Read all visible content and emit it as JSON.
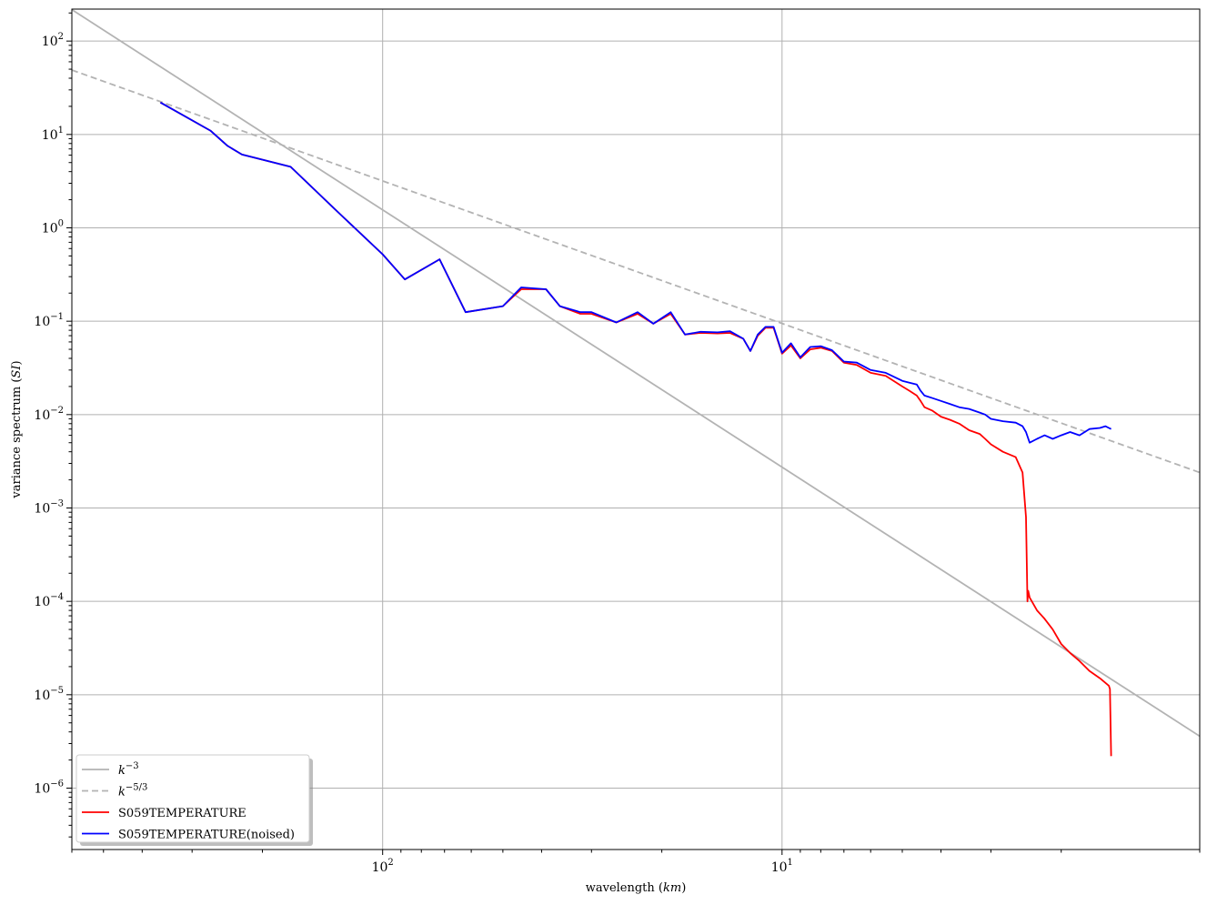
{
  "chart_data": {
    "type": "line",
    "xlabel_text": "wavelength (",
    "xlabel_unit": "km",
    "xlabel_close": ")",
    "ylabel_text": "variance spectrum (",
    "ylabel_unit": "SI",
    "ylabel_close": ")",
    "x_scale": "log",
    "y_scale": "log",
    "x_reversed": true,
    "xlim": [
      600,
      0.9
    ],
    "ylim": [
      2.2e-07,
      220
    ],
    "grid": true,
    "legend_position": "lower-left",
    "x_ticks": [
      {
        "value": 100,
        "base": "10",
        "exp": "2"
      },
      {
        "value": 10,
        "base": "10",
        "exp": "1"
      }
    ],
    "y_ticks": [
      {
        "value": 100,
        "base": "10",
        "exp": "2"
      },
      {
        "value": 10,
        "base": "10",
        "exp": "1"
      },
      {
        "value": 1,
        "base": "10",
        "exp": "0"
      },
      {
        "value": 0.1,
        "base": "10",
        "exp": "−1"
      },
      {
        "value": 0.01,
        "base": "10",
        "exp": "−2"
      },
      {
        "value": 0.001,
        "base": "10",
        "exp": "−3"
      },
      {
        "value": 0.0001,
        "base": "10",
        "exp": "−4"
      },
      {
        "value": 1e-05,
        "base": "10",
        "exp": "−5"
      },
      {
        "value": 1e-06,
        "base": "10",
        "exp": "−6"
      }
    ],
    "series": [
      {
        "name_base": "k",
        "name_exp": "−3",
        "color": "#b3b3b3",
        "dash": "",
        "x": [
          600,
          0.9
        ],
        "y": [
          217,
          3.6e-06
        ]
      },
      {
        "name_base": "k",
        "name_exp": "−5/3",
        "color": "#b3b3b3",
        "dash": "7,4",
        "x": [
          600,
          0.9
        ],
        "y": [
          49,
          0.0024
        ]
      },
      {
        "name": "S059TEMPERATURE",
        "color": "#ff0000",
        "dash": "",
        "x": [
          360,
          270,
          245,
          225,
          170,
          130,
          100,
          88,
          72,
          62,
          50,
          45,
          39,
          36,
          32,
          30,
          26,
          23,
          21,
          19,
          17.5,
          16,
          14.5,
          13.5,
          12.5,
          12,
          11.5,
          11,
          10.5,
          10,
          9.5,
          9,
          8.5,
          8,
          7.5,
          7,
          6.5,
          6,
          5.5,
          5,
          4.8,
          4.6,
          4.5,
          4.4,
          4.2,
          4,
          3.8,
          3.6,
          3.4,
          3.2,
          3.1,
          3.0,
          2.8,
          2.6,
          2.5,
          2.45,
          2.43,
          2.42,
          2.4,
          2.3,
          2.2,
          2.1,
          2.0,
          1.9,
          1.8,
          1.7,
          1.6,
          1.52,
          1.51,
          1.5
        ],
        "y": [
          22,
          11,
          7.6,
          6.1,
          4.5,
          1.5,
          0.52,
          0.28,
          0.46,
          0.125,
          0.145,
          0.22,
          0.22,
          0.145,
          0.12,
          0.12,
          0.097,
          0.12,
          0.094,
          0.12,
          0.072,
          0.075,
          0.074,
          0.075,
          0.065,
          0.048,
          0.07,
          0.085,
          0.085,
          0.045,
          0.055,
          0.04,
          0.05,
          0.052,
          0.048,
          0.036,
          0.034,
          0.028,
          0.026,
          0.02,
          0.018,
          0.016,
          0.014,
          0.012,
          0.011,
          0.0095,
          0.0088,
          0.008,
          0.0068,
          0.0062,
          0.0055,
          0.0048,
          0.004,
          0.0035,
          0.0024,
          0.0008,
          0.0001,
          0.00013,
          0.00011,
          8e-05,
          6.5e-05,
          5e-05,
          3.5e-05,
          2.8e-05,
          2.3e-05,
          1.8e-05,
          1.5e-05,
          1.25e-05,
          1.15e-05,
          2.2e-06
        ]
      },
      {
        "name": "S059TEMPERATURE(noised)",
        "color": "#0000ff",
        "dash": "",
        "x": [
          360,
          270,
          245,
          225,
          170,
          130,
          100,
          88,
          72,
          62,
          50,
          45,
          39,
          36,
          32,
          30,
          26,
          23,
          21,
          19,
          17.5,
          16,
          14.5,
          13.5,
          12.5,
          12,
          11.5,
          11,
          10.5,
          10,
          9.5,
          9,
          8.5,
          8,
          7.5,
          7,
          6.5,
          6,
          5.5,
          5,
          4.8,
          4.6,
          4.5,
          4.4,
          4.2,
          4,
          3.8,
          3.6,
          3.4,
          3.2,
          3.1,
          3.0,
          2.8,
          2.6,
          2.5,
          2.45,
          2.4,
          2.3,
          2.2,
          2.1,
          2.0,
          1.9,
          1.8,
          1.7,
          1.6,
          1.55,
          1.52,
          1.5
        ],
        "y": [
          22,
          11,
          7.6,
          6.1,
          4.5,
          1.5,
          0.52,
          0.28,
          0.46,
          0.125,
          0.145,
          0.23,
          0.22,
          0.145,
          0.125,
          0.125,
          0.097,
          0.125,
          0.094,
          0.125,
          0.072,
          0.077,
          0.076,
          0.078,
          0.065,
          0.048,
          0.072,
          0.087,
          0.087,
          0.046,
          0.058,
          0.041,
          0.053,
          0.054,
          0.049,
          0.037,
          0.036,
          0.03,
          0.028,
          0.023,
          0.022,
          0.021,
          0.018,
          0.016,
          0.015,
          0.014,
          0.013,
          0.012,
          0.0115,
          0.0105,
          0.01,
          0.009,
          0.0085,
          0.0082,
          0.0075,
          0.0065,
          0.005,
          0.0055,
          0.006,
          0.0055,
          0.006,
          0.0065,
          0.006,
          0.007,
          0.0072,
          0.0075,
          0.0072,
          0.007
        ]
      }
    ]
  }
}
